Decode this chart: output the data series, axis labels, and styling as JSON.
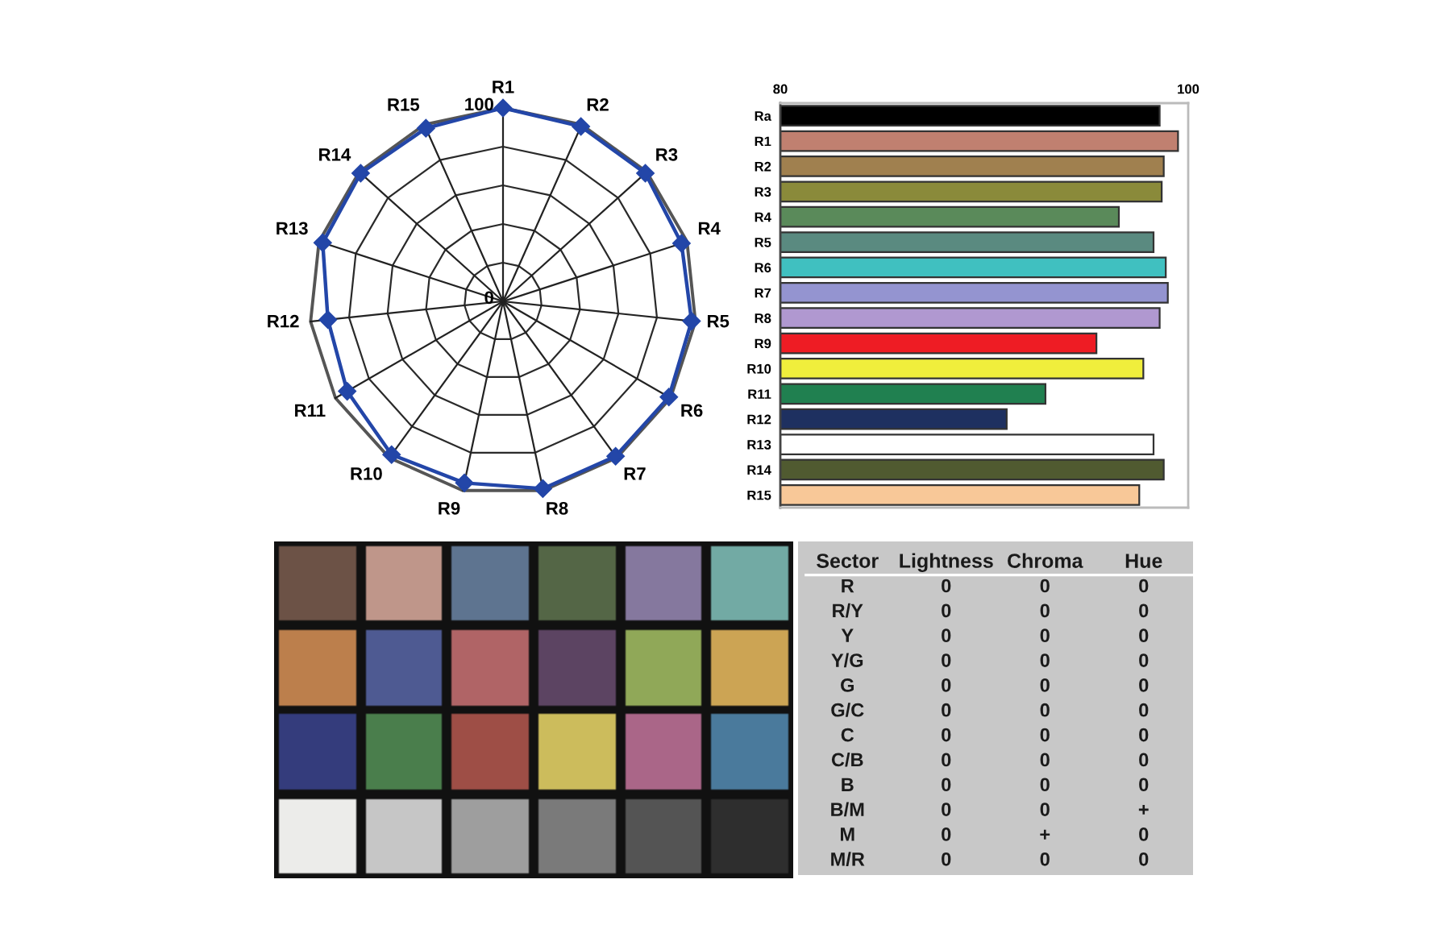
{
  "chart_data": [
    {
      "type": "radar",
      "categories": [
        "R1",
        "R2",
        "R3",
        "R4",
        "R5",
        "R6",
        "R7",
        "R8",
        "R9",
        "R10",
        "R11",
        "R12",
        "R13",
        "R14",
        "R15"
      ],
      "series": [
        {
          "color": "#2346a8",
          "values": [
            100,
            99,
            99,
            97,
            98,
            99,
            99,
            99,
            96,
            98,
            93,
            91,
            98,
            99,
            98
          ]
        }
      ],
      "ylim": [
        0,
        100
      ],
      "yticks": [
        0,
        100
      ],
      "grid": true,
      "marker": "diamond",
      "line_style": "solid"
    },
    {
      "type": "bar",
      "orientation": "horizontal",
      "categories": [
        "Ra",
        "R1",
        "R2",
        "R3",
        "R4",
        "R5",
        "R6",
        "R7",
        "R8",
        "R9",
        "R10",
        "R11",
        "R12",
        "R13",
        "R14",
        "R15"
      ],
      "values": [
        98.6,
        99.5,
        98.8,
        98.7,
        96.6,
        98.3,
        98.9,
        99.0,
        98.6,
        95.5,
        97.8,
        93.0,
        91.1,
        98.3,
        98.8,
        97.6
      ],
      "colors": [
        "#000000",
        "#c08070",
        "#a0804f",
        "#8a8a3a",
        "#5a8a5a",
        "#5a8a80",
        "#40c0c0",
        "#9494d0",
        "#b098d0",
        "#ee1c24",
        "#f0ee3c",
        "#208050",
        "#1e3060",
        "#ffffff",
        "#505a30",
        "#f8c898"
      ],
      "xlim": [
        80,
        100
      ],
      "xticks": [
        80,
        100
      ]
    },
    {
      "type": "other",
      "categories": [
        "Sector",
        "Lightness",
        "Chroma",
        "Hue"
      ],
      "cell_labels": [
        [
          "R",
          "0",
          "0",
          "0"
        ],
        [
          "R/Y",
          "0",
          "0",
          "0"
        ],
        [
          "Y",
          "0",
          "0",
          "0"
        ],
        [
          "Y/G",
          "0",
          "0",
          "0"
        ],
        [
          "G",
          "0",
          "0",
          "0"
        ],
        [
          "G/C",
          "0",
          "0",
          "0"
        ],
        [
          "C",
          "0",
          "0",
          "0"
        ],
        [
          "C/B",
          "0",
          "0",
          "0"
        ],
        [
          "B",
          "0",
          "0",
          "0"
        ],
        [
          "B/M",
          "0",
          "0",
          "+"
        ],
        [
          "M",
          "0",
          "+",
          "0"
        ],
        [
          "M/R",
          "0",
          "0",
          "0"
        ]
      ]
    }
  ]
}
